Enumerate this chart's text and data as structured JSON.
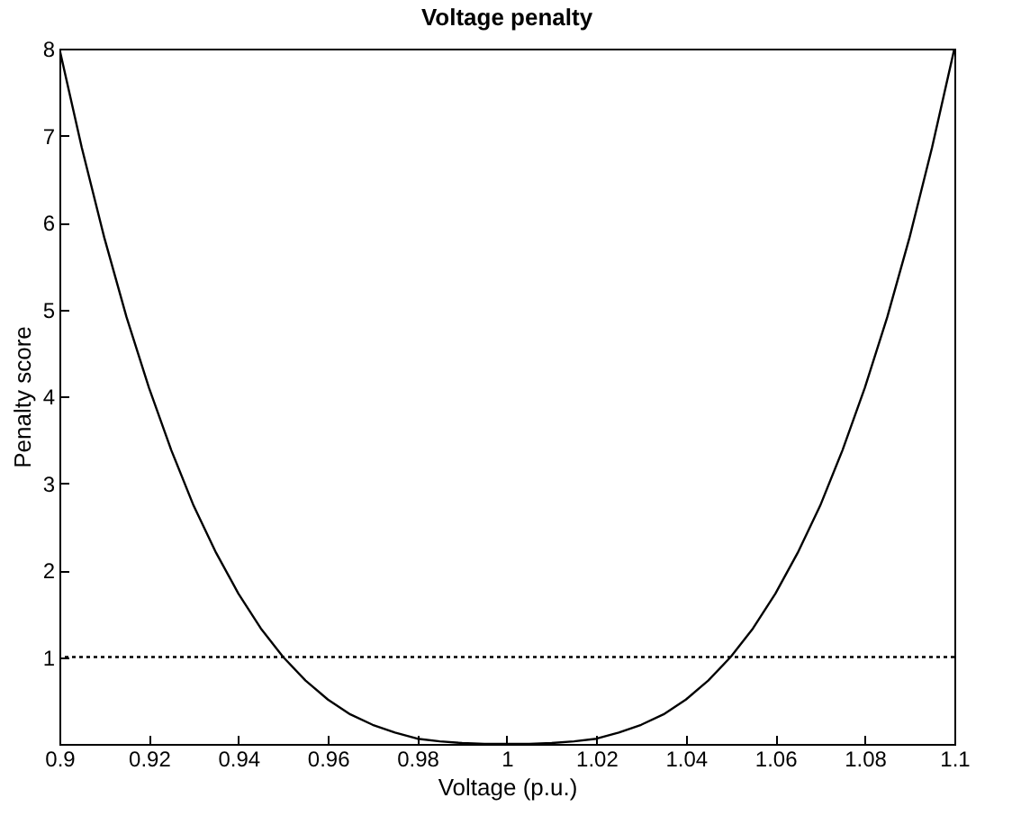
{
  "chart_data": {
    "type": "line",
    "title": "Voltage penalty",
    "xlabel": "Voltage (p.u.)",
    "ylabel": "Penalty score",
    "x": [
      0.9,
      0.905,
      0.91,
      0.915,
      0.92,
      0.925,
      0.93,
      0.935,
      0.94,
      0.945,
      0.95,
      0.955,
      0.96,
      0.965,
      0.97,
      0.975,
      0.98,
      0.985,
      0.99,
      0.995,
      1,
      1.005,
      1.01,
      1.015,
      1.02,
      1.025,
      1.03,
      1.035,
      1.04,
      1.045,
      1.05,
      1.055,
      1.06,
      1.065,
      1.07,
      1.075,
      1.08,
      1.085,
      1.09,
      1.095,
      1.1
    ],
    "series": [
      {
        "color": "#000000",
        "values": [
          8,
          6.86,
          5.83,
          4.91,
          4.1,
          3.38,
          2.74,
          2.2,
          1.73,
          1.33,
          1,
          0.73,
          0.51,
          0.34,
          0.22,
          0.13,
          0.06,
          0.03,
          0.01,
          0,
          0,
          0,
          0.01,
          0.03,
          0.06,
          0.13,
          0.22,
          0.34,
          0.51,
          0.73,
          1,
          1.33,
          1.73,
          2.2,
          2.74,
          3.38,
          4.1,
          4.91,
          5.83,
          6.86,
          8
        ]
      }
    ],
    "xlim": [
      0.9,
      1.1
    ],
    "xticks": [
      0.9,
      0.92,
      0.94,
      0.96,
      0.98,
      1,
      1.02,
      1.04,
      1.06,
      1.08,
      1.1
    ],
    "ylim": [
      0,
      8
    ],
    "yticks": [
      1,
      2,
      3,
      4,
      5,
      6,
      7,
      8
    ],
    "ref_lines": [
      {
        "axis": "y",
        "value": 1,
        "color": "#000000",
        "line_style": "dotted"
      }
    ],
    "line_style": "solid",
    "marker": "none",
    "grid": false
  }
}
